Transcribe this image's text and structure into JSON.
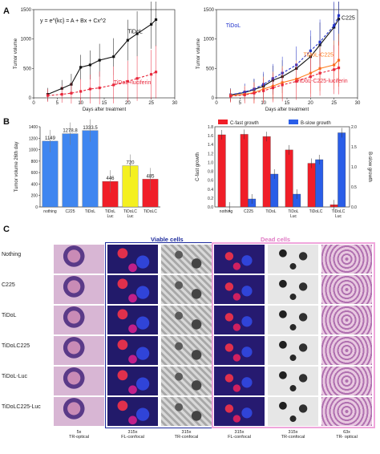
{
  "panels": {
    "a": "A",
    "b": "B",
    "c": "C"
  },
  "chart_data": [
    {
      "id": "a-left",
      "type": "line",
      "equation": "y = e^{kc} = A + Bx + Cx^2",
      "xlabel": "Days after treatment",
      "ylabel": "Tumor volume",
      "xlim": [
        0,
        30
      ],
      "ylim": [
        0,
        1500
      ],
      "xticks": [
        "0",
        "5",
        "10",
        "15",
        "20",
        "25",
        "30"
      ],
      "yticks": [
        "0",
        "500",
        "1000",
        "1500"
      ],
      "series": [
        {
          "name": "TiDoL",
          "color": "#111111",
          "x": [
            3,
            6,
            8,
            10,
            12,
            14,
            17,
            20,
            22,
            25,
            26
          ],
          "y": [
            60,
            160,
            230,
            520,
            560,
            640,
            700,
            980,
            1090,
            1250,
            1330
          ]
        },
        {
          "name": "TiDoL+luciferin",
          "color": "#e8283c",
          "x": [
            3,
            6,
            8,
            10,
            12,
            14,
            17,
            20,
            22,
            25,
            26
          ],
          "y": [
            40,
            60,
            80,
            110,
            150,
            170,
            220,
            280,
            330,
            400,
            440
          ]
        }
      ]
    },
    {
      "id": "a-right",
      "type": "line",
      "xlabel": "Days after treatment",
      "ylabel": "Tumor volume",
      "xlim": [
        0,
        30
      ],
      "ylim": [
        0,
        1500
      ],
      "xticks": [
        "0",
        "5",
        "10",
        "15",
        "20",
        "25",
        "30"
      ],
      "yticks": [
        "0",
        "500",
        "1000",
        "1500"
      ],
      "series": [
        {
          "name": "C225",
          "color": "#111111",
          "x": [
            3,
            6,
            8,
            10,
            12,
            14,
            17,
            20,
            22,
            25,
            26
          ],
          "y": [
            50,
            90,
            140,
            200,
            300,
            360,
            500,
            700,
            900,
            1200,
            1340
          ]
        },
        {
          "name": "TiDoL",
          "color": "#2233cc",
          "x": [
            3,
            6,
            8,
            10,
            12,
            14,
            17,
            20,
            22,
            25,
            26
          ],
          "y": [
            50,
            100,
            150,
            230,
            330,
            420,
            560,
            800,
            950,
            1230,
            1400
          ]
        },
        {
          "name": "TiDoL-C225",
          "color": "#ff7b1c",
          "x": [
            3,
            6,
            8,
            10,
            12,
            14,
            17,
            20,
            22,
            25,
            26
          ],
          "y": [
            40,
            60,
            90,
            150,
            200,
            260,
            320,
            420,
            500,
            560,
            640
          ]
        },
        {
          "name": "TiDoL-C225-luciferin",
          "color": "#e8283c",
          "x": [
            3,
            6,
            8,
            10,
            12,
            14,
            17,
            20,
            22,
            25,
            26
          ],
          "y": [
            30,
            50,
            80,
            120,
            170,
            220,
            280,
            360,
            420,
            480,
            510
          ]
        }
      ]
    },
    {
      "id": "b-left",
      "type": "bar",
      "ylabel": "Tumor volume 26th day",
      "ylim": [
        0,
        1400
      ],
      "yticks": [
        "0",
        "200",
        "400",
        "600",
        "800",
        "1000",
        "1200",
        "1400"
      ],
      "categories": [
        "nothing",
        "C225",
        "TiDoL",
        "TiDoL Luc",
        "TiDoLC Luc",
        "TiDoLC"
      ],
      "category_lines": [
        [
          "nothing"
        ],
        [
          "C225"
        ],
        [
          "TiDoL"
        ],
        [
          "TiDoL",
          "Luc"
        ],
        [
          "TiDoLC",
          "Luc"
        ],
        [
          "TiDoLC"
        ]
      ],
      "values": [
        1149,
        1278.8,
        1333.5,
        446,
        720,
        485
      ],
      "value_labels": [
        "1149",
        "1278.8",
        "1333.5",
        "446",
        "720",
        "485"
      ],
      "colors": [
        "#3f86f0",
        "#3f86f0",
        "#3f86f0",
        "#f01e28",
        "#f4f020",
        "#f01e28"
      ]
    },
    {
      "id": "b-right",
      "type": "bar",
      "ylabel": "C-fast growth",
      "y2label": "B-slow growth",
      "ylim": [
        0,
        1.8
      ],
      "y2lim": [
        0,
        2.0
      ],
      "yticks": [
        "0.0",
        "0.2",
        "0.4",
        "0.6",
        "0.8",
        "1.0",
        "1.2",
        "1.4",
        "1.6",
        "1.8"
      ],
      "y2ticks": [
        "0.0",
        "0.5",
        "1.0",
        "1.5",
        "2.0"
      ],
      "categories": [
        "nothing",
        "C225",
        "TiDoL",
        "TiDoL Luc",
        "TiDoLC",
        "TiDoLC Luc"
      ],
      "category_lines": [
        [
          "nothing"
        ],
        [
          "C225"
        ],
        [
          "TiDoL"
        ],
        [
          "TiDoL",
          "Luc"
        ],
        [
          "TiDoLC"
        ],
        [
          "TiDoLC",
          "Luc"
        ]
      ],
      "series": [
        {
          "name": "C-fast growth",
          "color": "#f01e28",
          "axis": "left",
          "values": [
            1.62,
            1.63,
            1.58,
            1.28,
            0.98,
            0.05
          ]
        },
        {
          "name": "B-slow growth",
          "color": "#2a5ee8",
          "axis": "right",
          "values": [
            0.0,
            0.2,
            0.82,
            0.32,
            1.18,
            1.85
          ]
        }
      ]
    }
  ],
  "panel_c": {
    "viable_label": "Viable cells",
    "dead_label": "Dead cells",
    "rows": [
      "Nothing",
      "C225",
      "TiDoL",
      "TiDoLC225",
      "TiDoL-Luc",
      "TiDoLC225-Luc"
    ],
    "columns": [
      {
        "mag": "5x",
        "mode": "TR-optical"
      },
      {
        "mag": "315x",
        "mode": "FL-confocal"
      },
      {
        "mag": "315x",
        "mode": "TR-confocal"
      },
      {
        "mag": "315x",
        "mode": "FL-confocal"
      },
      {
        "mag": "315x",
        "mode": "TR-confocal"
      },
      {
        "mag": "63x",
        "mode": "TR- optical"
      }
    ],
    "colors": {
      "viable_box": "#1c2a9c",
      "dead_box": "#f0a6dc"
    }
  }
}
